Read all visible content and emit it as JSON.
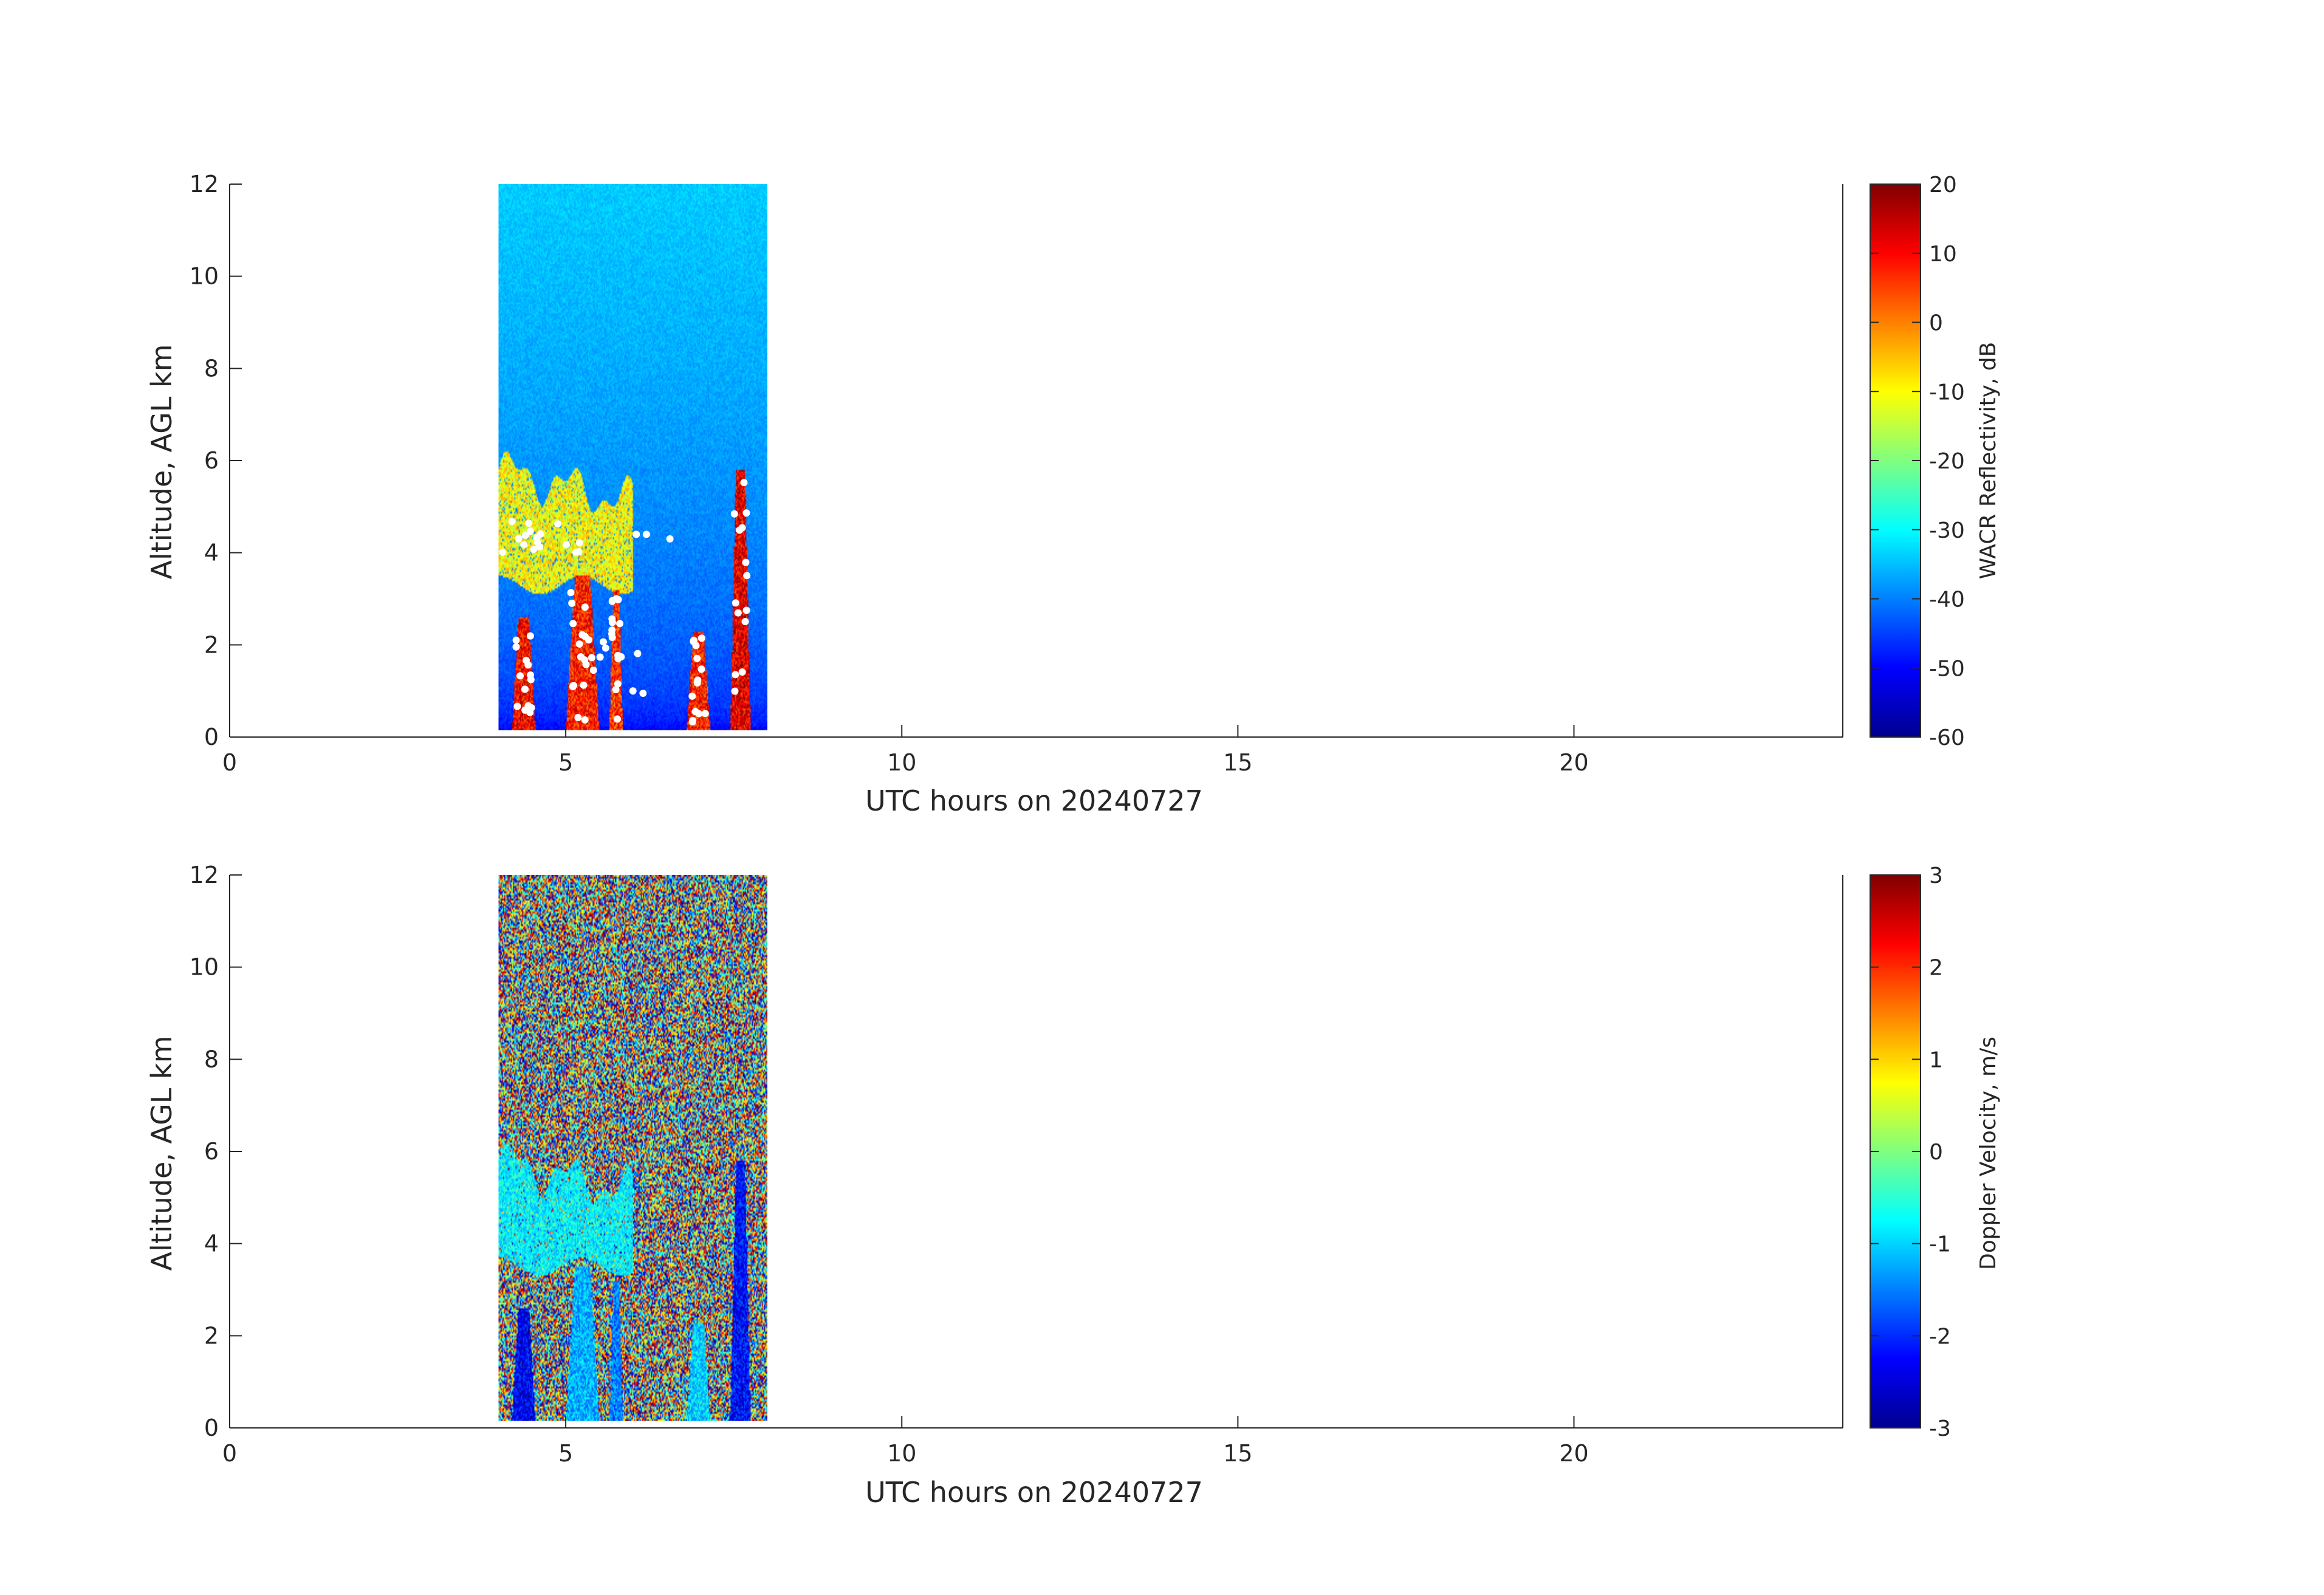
{
  "chart_data": [
    {
      "type": "heatmap",
      "xlabel": "UTC hours on 20240727",
      "ylabel": "Altitude, AGL km",
      "xlim": [
        0,
        24
      ],
      "ylim": [
        0,
        12
      ],
      "xticks": [
        0,
        5,
        10,
        15,
        20
      ],
      "yticks": [
        0,
        2,
        4,
        6,
        8,
        10,
        12
      ],
      "data_extent": {
        "x": [
          4.0,
          8.0
        ],
        "y": [
          0.15,
          12
        ]
      },
      "colorbar": {
        "label": "WACR Reflectivity, dB",
        "range": [
          -60,
          20
        ],
        "ticks": [
          20,
          10,
          0,
          -10,
          -20,
          -30,
          -40,
          -50,
          -60
        ],
        "colormap": "jet"
      },
      "background_field": {
        "value_top": -34,
        "value_bottom": -52
      },
      "features": [
        {
          "kind": "cloud_layer",
          "x": [
            4.0,
            6.0
          ],
          "y": [
            3.3,
            6.6
          ],
          "value": -10
        },
        {
          "kind": "precip_shaft",
          "x": [
            4.2,
            4.55
          ],
          "y": [
            0.15,
            2.6
          ],
          "value": 10
        },
        {
          "kind": "precip_shaft",
          "x": [
            5.0,
            5.5
          ],
          "y": [
            0.15,
            3.5
          ],
          "value": 8
        },
        {
          "kind": "precip_shaft",
          "x": [
            5.65,
            5.85
          ],
          "y": [
            0.15,
            3.2
          ],
          "value": 6
        },
        {
          "kind": "precip_shaft",
          "x": [
            6.8,
            7.15
          ],
          "y": [
            0.15,
            2.3
          ],
          "value": 8
        },
        {
          "kind": "precip_shaft",
          "x": [
            7.45,
            7.75
          ],
          "y": [
            0.15,
            5.8
          ],
          "value": 12
        }
      ],
      "markers": {
        "color": "#ffffff",
        "note": "white dots"
      }
    },
    {
      "type": "heatmap",
      "xlabel": "UTC hours on 20240727",
      "ylabel": "Altitude, AGL km",
      "xlim": [
        0,
        24
      ],
      "ylim": [
        0,
        12
      ],
      "xticks": [
        0,
        5,
        10,
        15,
        20
      ],
      "yticks": [
        0,
        2,
        4,
        6,
        8,
        10,
        12
      ],
      "data_extent": {
        "x": [
          4.0,
          8.0
        ],
        "y": [
          0.15,
          12
        ]
      },
      "colorbar": {
        "label": "Doppler Velocity, m/s",
        "range": [
          -3,
          3
        ],
        "ticks": [
          3,
          2,
          1,
          0,
          -1,
          -2,
          -3
        ],
        "colormap": "jet"
      },
      "background_field": {
        "value": "noise"
      },
      "features": [
        {
          "kind": "cloud_layer",
          "x": [
            4.0,
            6.0
          ],
          "y": [
            3.5,
            6.6
          ],
          "value": -0.8
        },
        {
          "kind": "precip_shaft",
          "x": [
            4.2,
            4.55
          ],
          "y": [
            0.15,
            2.6
          ],
          "value": -2.3
        },
        {
          "kind": "precip_shaft",
          "x": [
            5.0,
            5.5
          ],
          "y": [
            0.15,
            3.5
          ],
          "value": -1.2
        },
        {
          "kind": "precip_shaft",
          "x": [
            5.65,
            5.85
          ],
          "y": [
            0.15,
            3.2
          ],
          "value": -1.5
        },
        {
          "kind": "precip_shaft",
          "x": [
            6.8,
            7.15
          ],
          "y": [
            0.15,
            2.3
          ],
          "value": -1.0
        },
        {
          "kind": "precip_shaft",
          "x": [
            7.45,
            7.75
          ],
          "y": [
            0.15,
            5.8
          ],
          "value": -2.2
        }
      ]
    }
  ]
}
